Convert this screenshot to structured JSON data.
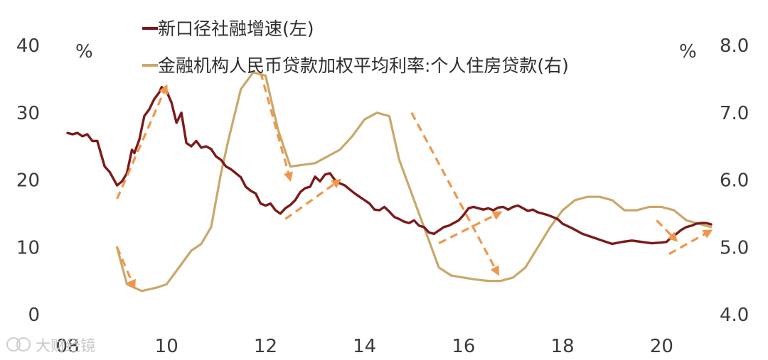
{
  "chart_data": {
    "type": "line",
    "left_axis": {
      "unit": "%",
      "ticks": [
        "0",
        "10",
        "20",
        "30",
        "40"
      ],
      "ylim": [
        0,
        40
      ]
    },
    "right_axis": {
      "unit": "%",
      "ticks": [
        "4.0",
        "5.0",
        "6.0",
        "7.0",
        "8.0"
      ],
      "ylim": [
        4.0,
        8.0
      ]
    },
    "x_axis": {
      "ticks": [
        "08",
        "10",
        "12",
        "14",
        "16",
        "18",
        "20"
      ],
      "tick_values": [
        2008,
        2010,
        2012,
        2014,
        2016,
        2018,
        2020
      ],
      "xlim": [
        2008,
        2021
      ]
    },
    "colors": {
      "series_social_financing": "#7b1a1a",
      "series_mortgage_rate": "#c9a86a",
      "trend_arrows": "#f0964a"
    },
    "series": [
      {
        "name": "新口径社融增速(左)",
        "axis": "left",
        "x": [
          2008.0,
          2008.1,
          2008.2,
          2008.3,
          2008.4,
          2008.5,
          2008.6,
          2008.75,
          2008.85,
          2009.0,
          2009.1,
          2009.2,
          2009.3,
          2009.35,
          2009.45,
          2009.55,
          2009.65,
          2009.75,
          2009.85,
          2009.9,
          2010.0,
          2010.1,
          2010.2,
          2010.3,
          2010.4,
          2010.5,
          2010.6,
          2010.7,
          2010.8,
          2010.9,
          2011.0,
          2011.1,
          2011.2,
          2011.3,
          2011.4,
          2011.5,
          2011.6,
          2011.7,
          2011.8,
          2011.9,
          2012.0,
          2012.1,
          2012.2,
          2012.3,
          2012.4,
          2012.5,
          2012.6,
          2012.7,
          2012.8,
          2012.9,
          2013.0,
          2013.1,
          2013.2,
          2013.3,
          2013.4,
          2013.5,
          2013.6,
          2013.7,
          2013.8,
          2013.9,
          2014.0,
          2014.1,
          2014.2,
          2014.3,
          2014.4,
          2014.5,
          2014.6,
          2014.7,
          2014.8,
          2014.9,
          2015.0,
          2015.1,
          2015.2,
          2015.3,
          2015.4,
          2015.5,
          2015.6,
          2015.7,
          2015.8,
          2015.9,
          2016.0,
          2016.1,
          2016.2,
          2016.3,
          2016.4,
          2016.5,
          2016.6,
          2016.7,
          2016.8,
          2016.9,
          2017.0,
          2017.1,
          2017.2,
          2017.3,
          2017.4,
          2017.5,
          2017.6,
          2017.7,
          2017.8,
          2017.9,
          2018.0,
          2018.2,
          2018.4,
          2018.6,
          2018.8,
          2019.0,
          2019.2,
          2019.4,
          2019.6,
          2019.8,
          2020.0,
          2020.1,
          2020.2,
          2020.3,
          2020.4,
          2020.5,
          2020.6,
          2020.7,
          2020.8,
          2020.9,
          2021.0
        ],
        "values": [
          27.0,
          26.8,
          27.0,
          26.5,
          26.8,
          25.8,
          25.8,
          22.0,
          21.2,
          19.2,
          19.8,
          21.0,
          24.5,
          24.0,
          26.0,
          29.5,
          30.5,
          32.0,
          33.0,
          33.8,
          33.2,
          31.5,
          28.5,
          30.0,
          25.5,
          25.0,
          25.8,
          24.8,
          25.0,
          24.6,
          23.5,
          23.0,
          22.0,
          21.6,
          21.0,
          20.4,
          19.0,
          18.4,
          18.0,
          16.5,
          16.2,
          16.5,
          15.5,
          15.0,
          15.8,
          16.3,
          17.0,
          18.2,
          18.8,
          19.0,
          20.5,
          19.8,
          20.8,
          21.0,
          20.0,
          19.5,
          19.2,
          18.6,
          18.0,
          17.5,
          17.0,
          16.5,
          15.6,
          15.5,
          16.0,
          15.3,
          14.5,
          14.2,
          13.8,
          13.6,
          14.0,
          13.2,
          13.0,
          12.2,
          12.0,
          12.5,
          13.0,
          13.2,
          13.6,
          14.0,
          14.8,
          15.8,
          16.0,
          15.8,
          15.6,
          15.8,
          15.5,
          15.9,
          16.0,
          15.6,
          16.0,
          16.2,
          15.8,
          15.4,
          15.6,
          15.2,
          15.0,
          14.8,
          14.5,
          14.2,
          13.5,
          12.8,
          12.0,
          11.5,
          11.0,
          10.5,
          10.8,
          11.0,
          10.8,
          10.6,
          10.7,
          10.8,
          11.5,
          12.0,
          12.6,
          13.0,
          13.2,
          13.5,
          13.6,
          13.6,
          13.4
        ]
      },
      {
        "name": "金融机构人民币贷款加权平均利率:个人住房贷款(右)",
        "axis": "right",
        "x": [
          2009.0,
          2009.2,
          2009.5,
          2009.8,
          2010.0,
          2010.2,
          2010.5,
          2010.7,
          2010.9,
          2011.1,
          2011.25,
          2011.5,
          2011.75,
          2012.0,
          2012.25,
          2012.5,
          2012.7,
          2013.0,
          2013.25,
          2013.5,
          2013.75,
          2014.0,
          2014.25,
          2014.5,
          2014.7,
          2014.85,
          2015.0,
          2015.25,
          2015.5,
          2015.75,
          2016.0,
          2016.25,
          2016.5,
          2016.75,
          2017.0,
          2017.25,
          2017.5,
          2017.75,
          2018.0,
          2018.25,
          2018.5,
          2018.75,
          2019.0,
          2019.25,
          2019.5,
          2019.75,
          2020.0,
          2020.25,
          2020.5,
          2020.75,
          2021.0
        ],
        "values": [
          5.0,
          4.45,
          4.35,
          4.4,
          4.45,
          4.65,
          4.95,
          5.05,
          5.3,
          6.1,
          6.6,
          7.35,
          7.6,
          7.55,
          6.75,
          6.2,
          6.22,
          6.25,
          6.35,
          6.45,
          6.65,
          6.9,
          7.0,
          6.95,
          6.3,
          6.0,
          5.7,
          5.2,
          4.7,
          4.58,
          4.55,
          4.52,
          4.5,
          4.5,
          4.55,
          4.7,
          5.0,
          5.3,
          5.55,
          5.7,
          5.75,
          5.75,
          5.7,
          5.55,
          5.55,
          5.6,
          5.6,
          5.55,
          5.4,
          5.35,
          5.3
        ]
      }
    ],
    "trend_arrows": [
      {
        "from": [
          2009.0,
          5.0
        ],
        "to": [
          2009.35,
          4.4
        ],
        "axis": "right"
      },
      {
        "from": [
          2009.0,
          17.2
        ],
        "to": [
          2010.0,
          34.0
        ],
        "axis": "left"
      },
      {
        "from": [
          2011.9,
          7.6
        ],
        "to": [
          2012.5,
          6.0
        ],
        "axis": "right"
      },
      {
        "from": [
          2012.4,
          14.2
        ],
        "to": [
          2013.5,
          20.0
        ],
        "axis": "left"
      },
      {
        "from": [
          2014.95,
          7.0
        ],
        "to": [
          2016.7,
          4.6
        ],
        "axis": "right"
      },
      {
        "from": [
          2015.5,
          10.6
        ],
        "to": [
          2016.75,
          15.2
        ],
        "axis": "left"
      },
      {
        "from": [
          2019.9,
          5.4
        ],
        "to": [
          2020.3,
          5.1
        ],
        "axis": "right"
      },
      {
        "from": [
          2020.15,
          9.0
        ],
        "to": [
          2021.0,
          12.5
        ],
        "axis": "left"
      }
    ]
  },
  "watermark": {
    "text": "大财经镜"
  }
}
